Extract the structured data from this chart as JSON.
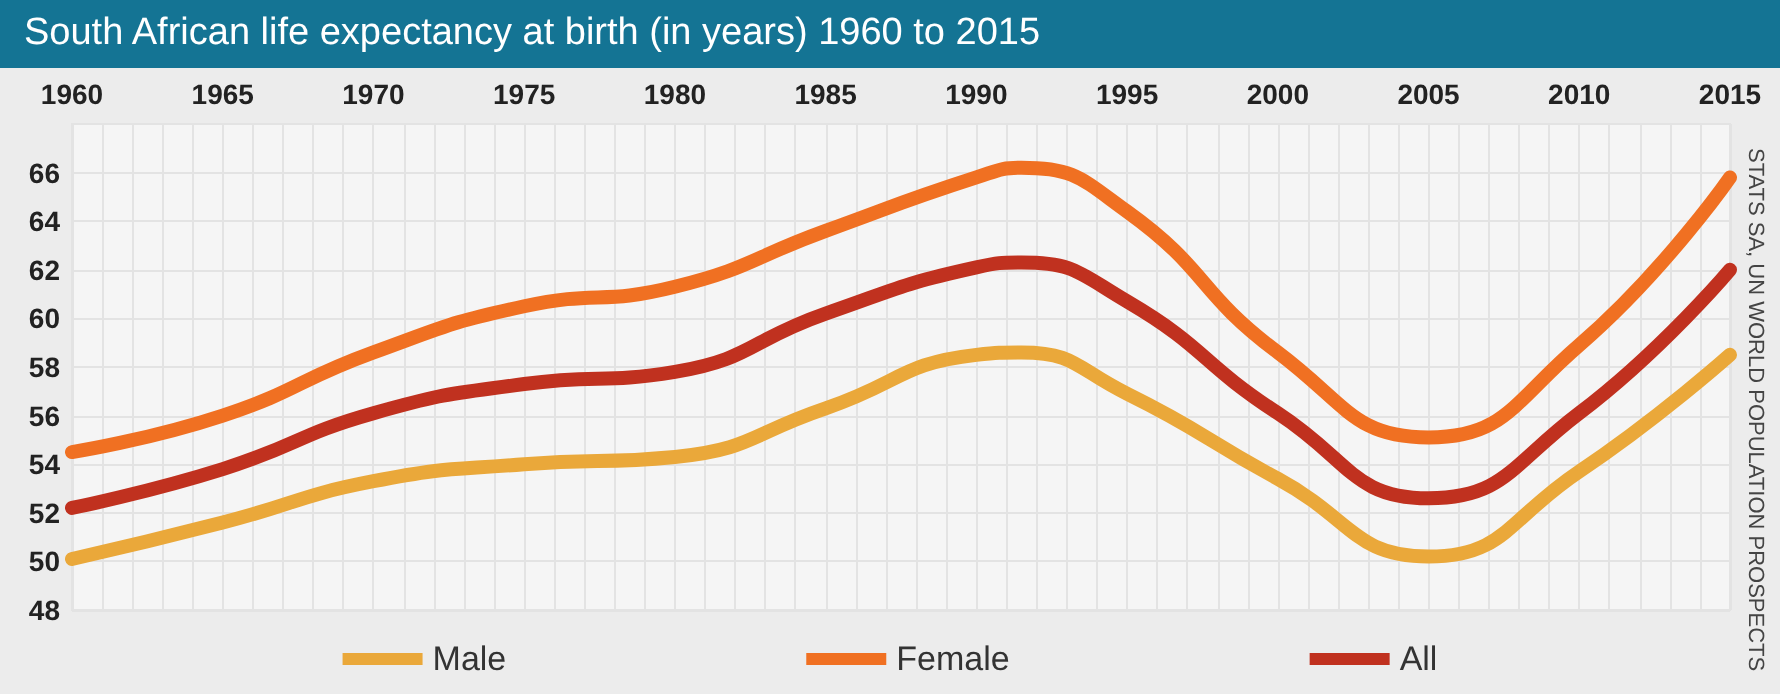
{
  "chart_data": {
    "type": "line",
    "title": "South African life expectancy at birth (in years) 1960 to 2015",
    "annotations": [
      "STATS SA, UN WORLD POPULATION PROSPECTS"
    ],
    "x": [
      1960,
      1965,
      1970,
      1975,
      1980,
      1985,
      1990,
      1991.5,
      1995,
      2000,
      2005,
      2010,
      2015
    ],
    "series": [
      {
        "name": "Male",
        "color": "#eaa83a",
        "values": [
          50.1,
          51.6,
          53.3,
          54.0,
          54.3,
          56.3,
          58.5,
          58.6,
          56.9,
          53.4,
          50.2,
          53.7,
          58.5
        ]
      },
      {
        "name": "Female",
        "color": "#f07022",
        "values": [
          54.5,
          56.0,
          58.6,
          60.5,
          61.3,
          63.6,
          65.8,
          66.2,
          64.4,
          58.6,
          55.1,
          58.9,
          65.8
        ]
      },
      {
        "name": "All",
        "color": "#c0311f",
        "values": [
          52.2,
          53.8,
          56.1,
          57.3,
          57.8,
          60.2,
          62.1,
          62.3,
          60.7,
          56.1,
          52.6,
          56.1,
          62.0
        ]
      }
    ],
    "xlim": [
      1960,
      2015
    ],
    "xticks": [
      1960,
      1965,
      1970,
      1975,
      1980,
      1985,
      1990,
      1995,
      2000,
      2005,
      2010,
      2015
    ],
    "ylim": [
      48,
      68
    ],
    "yticks": [
      48,
      50,
      52,
      54,
      56,
      58,
      60,
      62,
      64,
      66
    ],
    "grid": true,
    "legend": "bottom",
    "line_style": "solid"
  }
}
